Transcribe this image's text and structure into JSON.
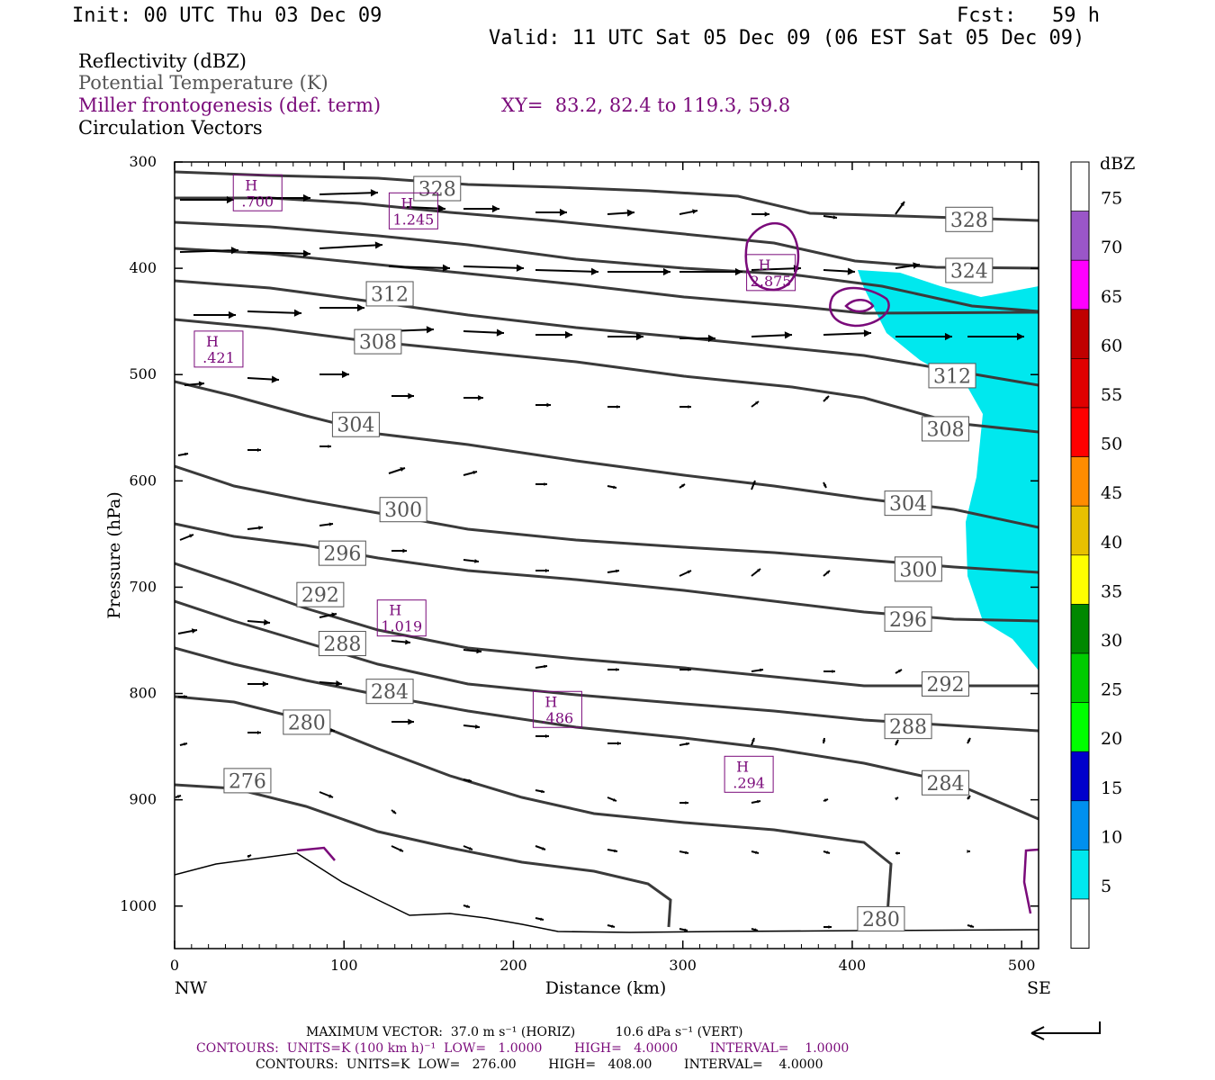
{
  "header": {
    "init": "Init: 00 UTC Thu 03 Dec 09",
    "fcst": "Fcst:   59 h",
    "valid": "Valid: 11 UTC Sat 05 Dec 09 (06 EST Sat 05 Dec 09)"
  },
  "legend": {
    "reflectivity": "Reflectivity (dBZ)",
    "theta": "Potential Temperature (K)",
    "miller": "Miller frontogenesis (def. term)",
    "xy": "XY=  83.2, 82.4 to 119.3, 59.8",
    "vectors": "Circulation Vectors"
  },
  "colors": {
    "theta": "#3a3a3a",
    "miller": "#7a0a7a",
    "dbz5": "#00e8ee",
    "legend_gray": "#555555"
  },
  "axes": {
    "ylabel": "Pressure (hPa)",
    "xlabel": "Distance (km)",
    "left_end": "NW",
    "right_end": "SE",
    "x_ticks": [
      "0",
      "100",
      "200",
      "300",
      "400",
      "500"
    ],
    "y_ticks": [
      "300",
      "400",
      "500",
      "600",
      "700",
      "800",
      "900",
      "1000"
    ]
  },
  "colorbar": {
    "title": "dBZ",
    "levels": [
      "75",
      "70",
      "65",
      "60",
      "55",
      "50",
      "45",
      "40",
      "35",
      "30",
      "25",
      "20",
      "15",
      "10",
      "5"
    ],
    "colors": [
      "#ffffff",
      "#9a56c8",
      "#ff00ff",
      "#c00000",
      "#e00000",
      "#ff0000",
      "#ff8c00",
      "#e8c000",
      "#ffff00",
      "#008800",
      "#00cc00",
      "#00ff00",
      "#0000cc",
      "#0090ee",
      "#00e8ee",
      "#ffffff"
    ]
  },
  "footer": {
    "max_vector": "MAXIMUM VECTOR:  37.0 m s⁻¹ (HORIZ)          10.6 dPa s⁻¹ (VERT)",
    "contours_miller": "CONTOURS:  UNITS=K (100 km h)⁻¹  LOW=   1.0000        HIGH=   4.0000        INTERVAL=    1.0000",
    "contours_theta": "CONTOURS:  UNITS=K  LOW=   276.00        HIGH=   408.00        INTERVAL=    4.0000"
  },
  "chart_data": {
    "type": "cross-section",
    "x_range_km": [
      0,
      510
    ],
    "y_range_hpa": [
      300,
      1040
    ],
    "theta_labels": [
      {
        "k": "328",
        "x": 155,
        "p": 325
      },
      {
        "k": "328",
        "x": 469,
        "p": 354
      },
      {
        "k": "324",
        "x": 469,
        "p": 402
      },
      {
        "k": "312",
        "x": 127,
        "p": 424
      },
      {
        "k": "312",
        "x": 459,
        "p": 501
      },
      {
        "k": "308",
        "x": 120,
        "p": 469
      },
      {
        "k": "308",
        "x": 455,
        "p": 551
      },
      {
        "k": "304",
        "x": 107,
        "p": 547
      },
      {
        "k": "304",
        "x": 433,
        "p": 621
      },
      {
        "k": "300",
        "x": 135,
        "p": 627
      },
      {
        "k": "300",
        "x": 439,
        "p": 683
      },
      {
        "k": "296",
        "x": 99,
        "p": 668
      },
      {
        "k": "296",
        "x": 433,
        "p": 730
      },
      {
        "k": "292",
        "x": 86,
        "p": 707
      },
      {
        "k": "292",
        "x": 455,
        "p": 791
      },
      {
        "k": "288",
        "x": 99,
        "p": 753
      },
      {
        "k": "288",
        "x": 433,
        "p": 831
      },
      {
        "k": "284",
        "x": 127,
        "p": 798
      },
      {
        "k": "284",
        "x": 455,
        "p": 884
      },
      {
        "k": "280",
        "x": 78,
        "p": 827
      },
      {
        "k": "280",
        "x": 417,
        "p": 1012
      },
      {
        "k": "276",
        "x": 43,
        "p": 882
      }
    ],
    "miller_highs": [
      {
        "label": "H",
        "value": ".700",
        "x": 49,
        "p": 329
      },
      {
        "label": "H",
        "value": "1.245",
        "x": 141,
        "p": 346
      },
      {
        "label": "H",
        "value": "2.875",
        "x": 352,
        "p": 404
      },
      {
        "label": "H",
        "value": ".421",
        "x": 26,
        "p": 476
      },
      {
        "label": "H",
        "value": "1.019",
        "x": 134,
        "p": 729
      },
      {
        "label": "H",
        "value": ".486",
        "x": 226,
        "p": 815
      },
      {
        "label": "H",
        "value": ".294",
        "x": 339,
        "p": 876
      }
    ]
  }
}
